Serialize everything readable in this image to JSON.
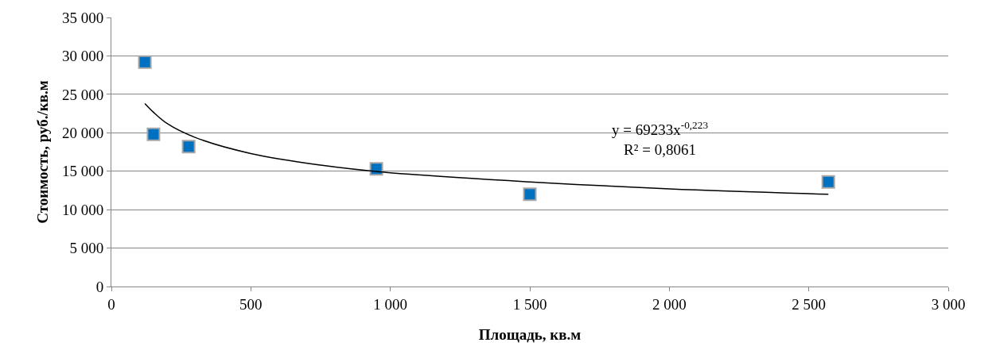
{
  "chart_data": {
    "type": "scatter",
    "xlabel": "Площадь, кв.м",
    "ylabel": "Стоимость, руб./кв.м",
    "xlim": [
      0,
      3000
    ],
    "xticks": [
      0,
      500,
      {
        "value": 1000,
        "label": "1 000"
      },
      {
        "value": 1500,
        "label": "1 500"
      },
      {
        "value": 2000,
        "label": "2 000"
      },
      {
        "value": 2500,
        "label": "2 500"
      },
      {
        "value": 3000,
        "label": "3 000"
      }
    ],
    "ylim": [
      0,
      35000
    ],
    "yticks": [
      0,
      {
        "value": 5000,
        "label": "5 000"
      },
      {
        "value": 10000,
        "label": "10 000"
      },
      {
        "value": 15000,
        "label": "15 000"
      },
      {
        "value": 20000,
        "label": "20 000"
      },
      {
        "value": 25000,
        "label": "25 000"
      },
      {
        "value": 30000,
        "label": "30 000"
      },
      {
        "value": 35000,
        "label": "35 000"
      }
    ],
    "grid": "y",
    "series": [
      {
        "marker": "square",
        "color": "#0070c0",
        "x": [
          120,
          151,
          277,
          950,
          1500,
          2570
        ],
        "values": [
          29200,
          19800,
          18200,
          15300,
          12000,
          13600
        ]
      },
      {
        "type": "line",
        "marker": "none",
        "color": "#000000",
        "x": [
          120,
          150,
          200,
          300,
          500,
          750,
          1000,
          1500,
          2000,
          2570
        ],
        "values": [
          23800,
          22700,
          21200,
          19400,
          17300,
          15800,
          14800,
          13600,
          12700,
          12000
        ]
      }
    ],
    "annotations": [
      "y = 69233x$^{-0,223}$",
      "R² = 0,8061"
    ]
  }
}
